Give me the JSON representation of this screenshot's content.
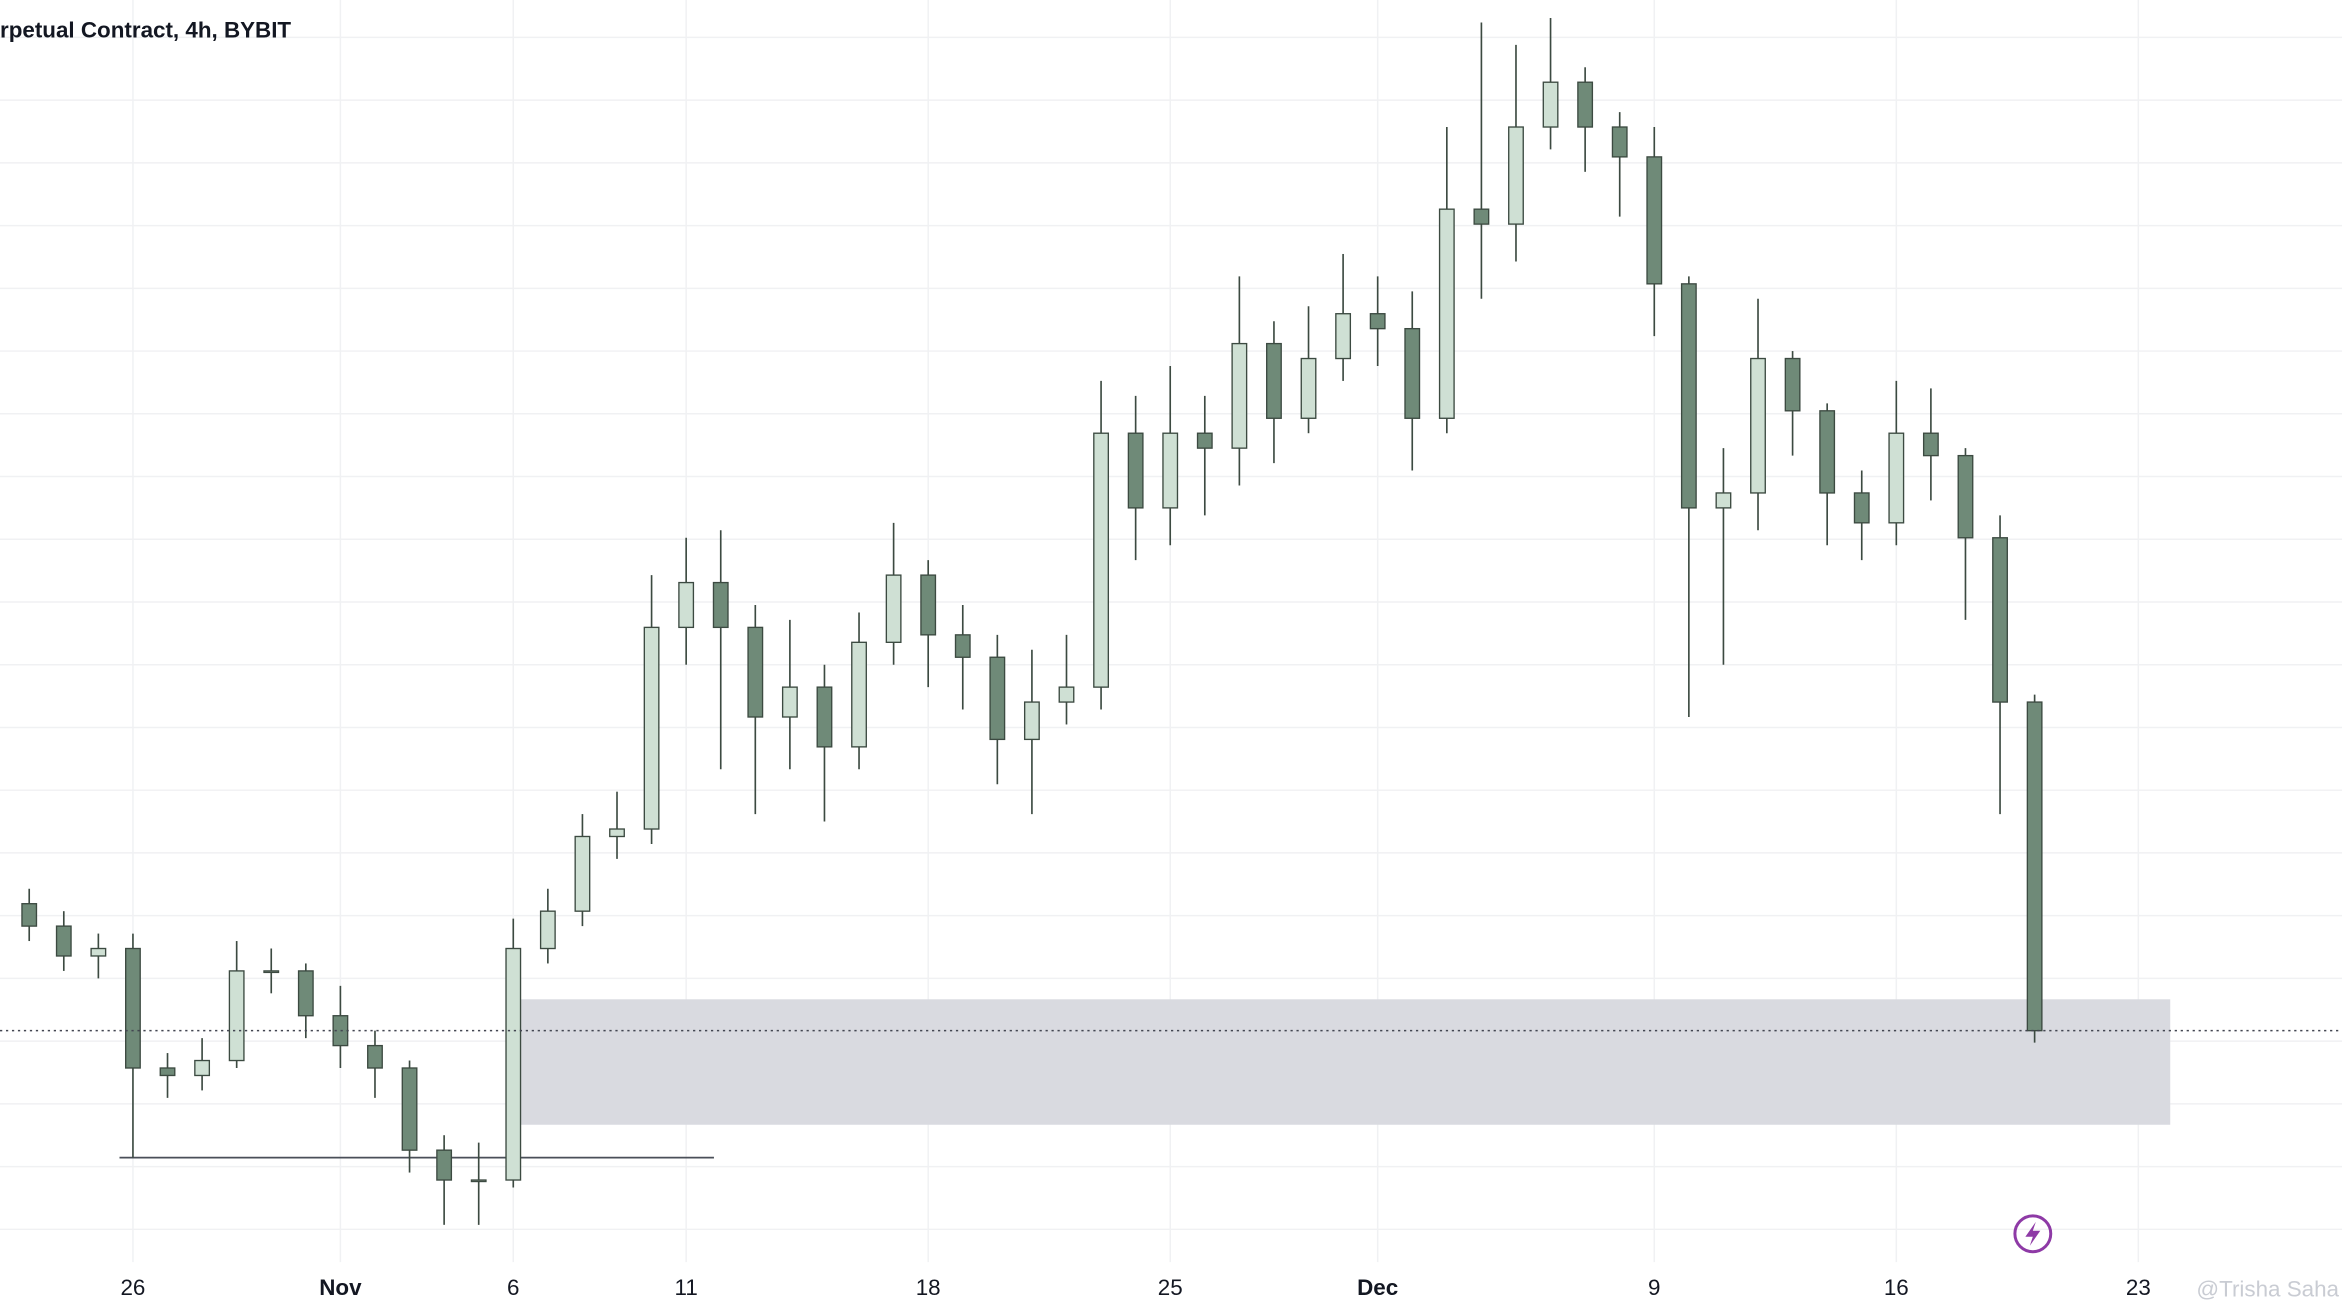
{
  "chart_data": {
    "type": "candlestick",
    "title": "rpetual Contract, 4h, BYBIT",
    "x": [
      -3,
      -2,
      -1,
      0,
      1,
      2,
      3,
      4,
      5,
      6,
      7,
      8,
      9,
      10,
      11,
      12,
      13,
      14,
      15,
      16,
      17,
      18,
      19,
      20,
      21,
      22,
      23,
      24,
      25,
      26,
      27,
      28,
      29,
      30,
      31,
      32,
      33,
      34,
      35,
      36,
      37,
      38,
      39,
      40,
      41,
      42,
      43,
      44,
      45,
      46,
      47,
      48,
      49,
      50,
      51,
      52,
      53,
      54,
      55
    ],
    "open": [
      240,
      225,
      205,
      210,
      130,
      125,
      135,
      195,
      195,
      165,
      145,
      130,
      75,
      55,
      55,
      210,
      235,
      285,
      290,
      425,
      455,
      425,
      365,
      385,
      345,
      415,
      460,
      420,
      405,
      350,
      375,
      385,
      555,
      505,
      555,
      545,
      615,
      565,
      605,
      635,
      625,
      565,
      705,
      695,
      760,
      790,
      760,
      740,
      655,
      505,
      515,
      605,
      570,
      515,
      495,
      555,
      540,
      485,
      375
    ],
    "high": [
      250,
      235,
      220,
      220,
      140,
      150,
      215,
      210,
      200,
      185,
      155,
      135,
      85,
      80,
      230,
      250,
      300,
      315,
      460,
      485,
      490,
      440,
      430,
      400,
      435,
      495,
      470,
      440,
      420,
      410,
      420,
      590,
      580,
      600,
      580,
      660,
      630,
      640,
      675,
      660,
      650,
      760,
      830,
      815,
      833,
      800,
      770,
      760,
      660,
      545,
      645,
      610,
      575,
      530,
      590,
      585,
      545,
      500,
      380
    ],
    "low": [
      215,
      195,
      190,
      70,
      110,
      115,
      130,
      180,
      150,
      130,
      110,
      60,
      25,
      25,
      50,
      200,
      225,
      270,
      280,
      400,
      330,
      300,
      330,
      295,
      330,
      400,
      385,
      370,
      320,
      300,
      360,
      370,
      470,
      480,
      500,
      520,
      535,
      555,
      590,
      600,
      530,
      555,
      645,
      670,
      745,
      730,
      700,
      620,
      365,
      400,
      490,
      540,
      480,
      470,
      480,
      510,
      430,
      300,
      147
    ],
    "close": [
      225,
      205,
      210,
      130,
      125,
      135,
      195,
      195,
      165,
      145,
      130,
      75,
      55,
      55,
      210,
      235,
      285,
      290,
      425,
      455,
      425,
      365,
      385,
      345,
      415,
      460,
      420,
      405,
      350,
      375,
      385,
      555,
      505,
      555,
      545,
      615,
      565,
      605,
      635,
      625,
      565,
      705,
      695,
      760,
      790,
      760,
      740,
      655,
      505,
      515,
      605,
      570,
      515,
      495,
      555,
      540,
      485,
      375,
      155
    ],
    "up_color": "#cfe0d4",
    "down_color": "#6f8a78",
    "xlim": [
      -3.845,
      63.89
    ],
    "ylim": [
      0,
      845
    ],
    "xticks": [
      {
        "value": 0,
        "label": "26"
      },
      {
        "value": 6,
        "label": "Nov"
      },
      {
        "value": 11,
        "label": "6"
      },
      {
        "value": 16,
        "label": "11"
      },
      {
        "value": 23,
        "label": "18"
      },
      {
        "value": 30,
        "label": "25"
      },
      {
        "value": 36,
        "label": "Dec"
      },
      {
        "value": 44,
        "label": "9"
      },
      {
        "value": 51,
        "label": "16"
      },
      {
        "value": 58,
        "label": "23"
      }
    ],
    "grid": true
  },
  "watermark": "@Trisha Saha"
}
